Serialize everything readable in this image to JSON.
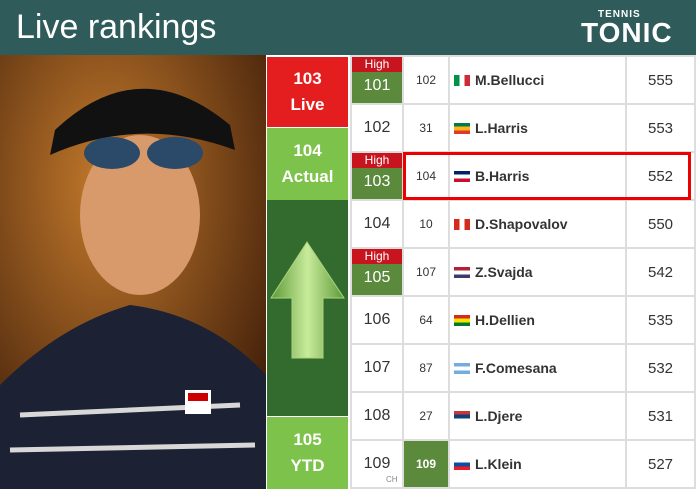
{
  "header": {
    "title": "Live rankings",
    "logo_top": "TENNIS",
    "logo": "TONIC"
  },
  "summary": {
    "live": {
      "value": 103,
      "label": "Live"
    },
    "actual": {
      "value": 104,
      "label": "Actual"
    },
    "ytd": {
      "value": 105,
      "label": "YTD"
    }
  },
  "rows": [
    {
      "badge": "High",
      "rank": 101,
      "prev": 102,
      "name": "M.Bellucci",
      "points": 555
    },
    {
      "rank": 102,
      "prev": 31,
      "name": "L.Harris",
      "points": 553
    },
    {
      "badge": "High",
      "rank": 103,
      "prev": 104,
      "name": "B.Harris",
      "points": 552,
      "highlight": true
    },
    {
      "rank": 104,
      "prev": 10,
      "name": "D.Shapovalov",
      "points": 550
    },
    {
      "badge": "High",
      "rank": 105,
      "prev": 107,
      "name": "Z.Svajda",
      "points": 542
    },
    {
      "rank": 106,
      "prev": 64,
      "name": "H.Dellien",
      "points": 535
    },
    {
      "rank": 107,
      "prev": 87,
      "name": "F.Comesana",
      "points": 532
    },
    {
      "rank": 108,
      "prev": 27,
      "name": "L.Djere",
      "points": 531
    },
    {
      "rank": 109,
      "prev": 109,
      "prev_note": "CH",
      "name": "L.Klein",
      "points": 527
    }
  ]
}
